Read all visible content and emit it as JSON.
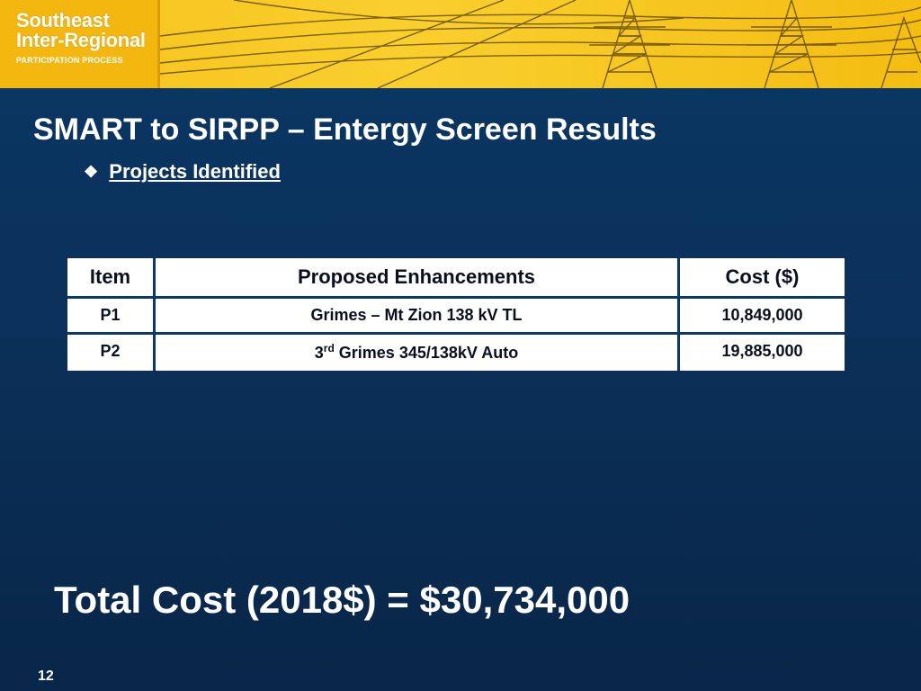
{
  "banner": {
    "logo_line1": "Southeast",
    "logo_line2": "Inter-Regional",
    "logo_line3": "PARTICIPATION PROCESS"
  },
  "slide": {
    "title": "SMART to SIRPP – Entergy Screen Results",
    "bullet_icon": "❖",
    "bullet_text": "Projects Identified",
    "table": {
      "headers": [
        "Item",
        "Proposed Enhancements",
        "Cost ($)"
      ],
      "rows": [
        {
          "item": "P1",
          "enhancement": "Grimes – Mt Zion 138 kV TL",
          "cost": "10,849,000"
        },
        {
          "item": "P2",
          "enhancement_prefix": "3",
          "enhancement_sup": "rd",
          "enhancement_rest": " Grimes 345/138kV Auto",
          "cost": "19,885,000"
        }
      ]
    },
    "total": "Total Cost (2018$) = $30,734,000",
    "page_number": "12"
  },
  "colors": {
    "background": "#0b2f57",
    "banner_yellow": "#f6c21c",
    "table_border": "#0c3a68"
  }
}
